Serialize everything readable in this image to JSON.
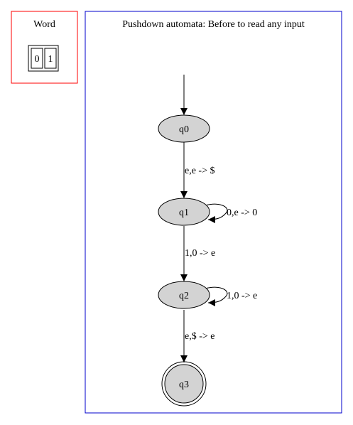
{
  "word_panel": {
    "title": "Word",
    "cells": [
      "0",
      "1"
    ],
    "border_color": "#ff0000"
  },
  "automaton_panel": {
    "title": "Pushdown automata: Before to read any input",
    "border_color": "#0000cc",
    "node_fill": "#d3d3d3",
    "states": [
      {
        "id": "q0",
        "label": "q0",
        "accepting": false,
        "initial": true
      },
      {
        "id": "q1",
        "label": "q1",
        "accepting": false,
        "initial": false
      },
      {
        "id": "q2",
        "label": "q2",
        "accepting": false,
        "initial": false
      },
      {
        "id": "q3",
        "label": "q3",
        "accepting": true,
        "initial": false
      }
    ],
    "transitions": [
      {
        "from": "q0",
        "to": "q1",
        "label": "e,e -> $"
      },
      {
        "from": "q1",
        "to": "q1",
        "label": "0,e -> 0"
      },
      {
        "from": "q1",
        "to": "q2",
        "label": "1,0 -> e"
      },
      {
        "from": "q2",
        "to": "q2",
        "label": "1,0 -> e"
      },
      {
        "from": "q2",
        "to": "q3",
        "label": "e,$ -> e"
      }
    ]
  }
}
